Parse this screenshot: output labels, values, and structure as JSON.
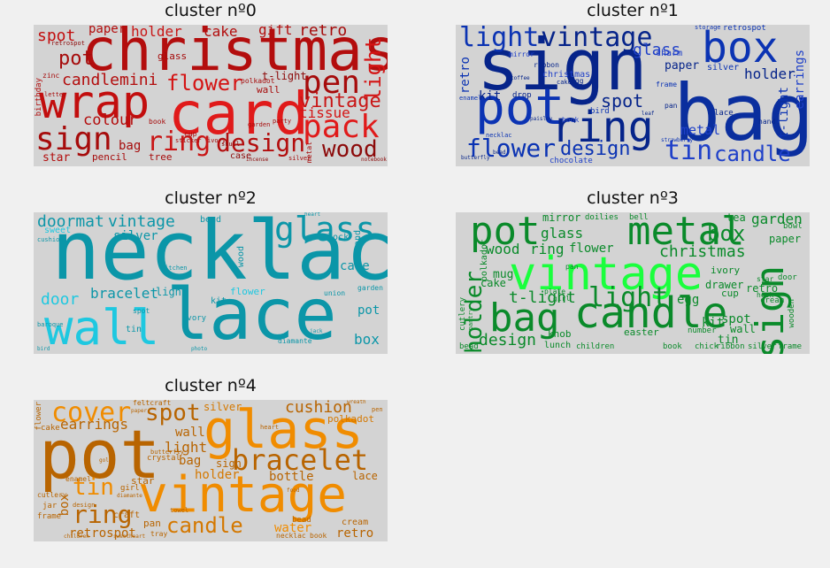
{
  "clusters": [
    {
      "title": "cluster nº0",
      "color_light": "#e01a1a",
      "color_dark": "#a60b0b",
      "words": [
        "christmas",
        "card",
        "wrap",
        "sign",
        "pack",
        "ring",
        "design",
        "pen",
        "flower",
        "light",
        "vintage",
        "wood",
        "tissue",
        "candlemini",
        "colour",
        "spot",
        "pot",
        "holder",
        "cake",
        "gift",
        "retro",
        "paper",
        "bag",
        "t-light",
        "wall",
        "star",
        "pencil",
        "tree",
        "case",
        "cup",
        "book",
        "glass",
        "birthday",
        "zinc",
        "letter",
        "retrospot",
        "garden",
        "sticker",
        "skull",
        "ivory",
        "party",
        "incense",
        "silver",
        "metal",
        "notebook",
        "polkadot"
      ]
    },
    {
      "title": "cluster nº1",
      "color_light": "#1f40c9",
      "color_dark": "#06248a",
      "words": [
        "sign",
        "bag",
        "pot",
        "box",
        "ring",
        "light",
        "vintage",
        "flower",
        "tin",
        "candle",
        "design",
        "spot",
        "glass",
        "holder",
        "metal",
        "earrings",
        "t-light",
        "retro",
        "kit",
        "paper",
        "silver",
        "christmas",
        "charm",
        "retrospot",
        "lace",
        "necklac",
        "ribbon",
        "drop",
        "egg",
        "book",
        "bird",
        "hand",
        "chocolate",
        "mirror",
        "cake",
        "frame",
        "storage",
        "enamel",
        "butterfly",
        "bead",
        "paisley",
        "leaf",
        "strawberry",
        "pan",
        "coffee"
      ]
    },
    {
      "title": "cluster nº2",
      "color_light": "#1ec8e0",
      "color_dark": "#0b96a8",
      "words": [
        "necklac",
        "lace",
        "wall",
        "glass",
        "doormat",
        "vintage",
        "sweet",
        "silver",
        "bracelet",
        "door",
        "box",
        "pot",
        "cake",
        "clock",
        "wood",
        "stand",
        "flower",
        "light",
        "kit",
        "tin",
        "ivory",
        "spot",
        "union",
        "garden",
        "bead",
        "kitchen",
        "cushion",
        "diamante",
        "baroque",
        "bird",
        "photo",
        "heart",
        "jack"
      ]
    },
    {
      "title": "cluster nº3",
      "color_light": "#1aff3d",
      "color_dark": "#0a8a2a",
      "words": [
        "vintage",
        "bag",
        "candle",
        "pot",
        "metal",
        "sign",
        "holder",
        "light",
        "box",
        "christmas",
        "design",
        "t-light",
        "wood",
        "ring",
        "glass",
        "flower",
        "garden",
        "mirror",
        "tea",
        "paper",
        "cake",
        "kit",
        "tin",
        "spot",
        "drawer",
        "retro",
        "egg",
        "knob",
        "easter",
        "cup",
        "mug",
        "ivory",
        "wall",
        "lunch",
        "children",
        "book",
        "ribbon",
        "chick",
        "silver",
        "frame",
        "pantry",
        "polkadot",
        "cutlery",
        "doilies",
        "bell",
        "girl",
        "pan",
        "plate",
        "number",
        "cream",
        "wooden",
        "bead",
        "door",
        "bowl",
        "star",
        "hook"
      ]
    },
    {
      "title": "cluster nº4",
      "color_light": "#f08c00",
      "color_dark": "#b86400",
      "words": [
        "pot",
        "glass",
        "vintage",
        "bracelet",
        "cover",
        "spot",
        "ring",
        "tin",
        "candle",
        "cushion",
        "earrings",
        "silver",
        "wall",
        "light",
        "bag",
        "holder",
        "sign",
        "bottle",
        "lace",
        "water",
        "retrospot",
        "retro",
        "box",
        "flower",
        "cake",
        "polkadot",
        "crystal",
        "star",
        "craft",
        "enamel",
        "butterfly",
        "cutlery",
        "jar",
        "frame",
        "design",
        "pan",
        "girl",
        "tray",
        "towel",
        "cream",
        "bead",
        "book",
        "necklac",
        "children",
        "sweetheart",
        "pen",
        "feltcraft",
        "heart",
        "wreath",
        "paper",
        "food",
        "diamante",
        "gold"
      ]
    }
  ]
}
